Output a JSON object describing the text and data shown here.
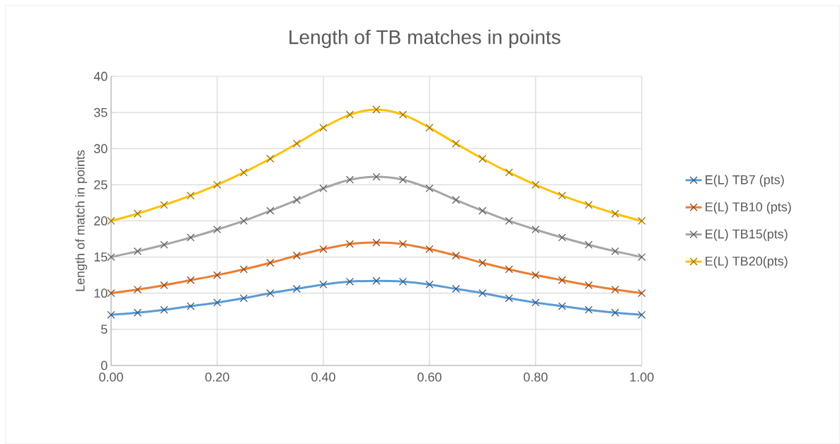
{
  "chart_data": {
    "type": "line",
    "title": "Length of TB matches in points",
    "ylabel": "Length of match in points",
    "x": [
      0,
      0.05,
      0.1,
      0.15,
      0.2,
      0.25,
      0.3,
      0.35,
      0.4,
      0.45,
      0.5,
      0.55,
      0.6,
      0.65,
      0.7,
      0.75,
      0.8,
      0.85,
      0.9,
      0.95,
      1
    ],
    "series": [
      {
        "name": "E(L) TB7 (pts)",
        "color": "#5b9bd5",
        "values": [
          7,
          7.3,
          7.7,
          8.2,
          8.7,
          9.3,
          10,
          10.6,
          11.2,
          11.6,
          11.7,
          11.6,
          11.2,
          10.6,
          10,
          9.3,
          8.7,
          8.2,
          7.7,
          7.3,
          7
        ]
      },
      {
        "name": "E(L) TB10 (pts)",
        "color": "#ed7d31",
        "values": [
          10,
          10.5,
          11.1,
          11.8,
          12.5,
          13.3,
          14.2,
          15.2,
          16.1,
          16.8,
          17,
          16.8,
          16.1,
          15.2,
          14.2,
          13.3,
          12.5,
          11.8,
          11.1,
          10.5,
          10
        ]
      },
      {
        "name": "E(L) TB15(pts)",
        "color": "#a5a5a5",
        "values": [
          15,
          15.8,
          16.7,
          17.7,
          18.8,
          20,
          21.4,
          22.9,
          24.5,
          25.7,
          26.1,
          25.7,
          24.5,
          22.9,
          21.4,
          20,
          18.8,
          17.7,
          16.7,
          15.8,
          15
        ]
      },
      {
        "name": "E(L) TB20(pts)",
        "color": "#ffc000",
        "values": [
          20,
          21,
          22.2,
          23.5,
          25,
          26.7,
          28.6,
          30.7,
          32.9,
          34.7,
          35.4,
          34.7,
          32.9,
          30.7,
          28.6,
          26.7,
          25,
          23.5,
          22.2,
          21,
          20
        ]
      }
    ],
    "xlim": [
      0,
      1
    ],
    "xticks": [
      {
        "value": 0,
        "label": "0.00"
      },
      {
        "value": 0.2,
        "label": "0.20"
      },
      {
        "value": 0.4,
        "label": "0.40"
      },
      {
        "value": 0.6,
        "label": "0.60"
      },
      {
        "value": 0.8,
        "label": "0.80"
      },
      {
        "value": 1,
        "label": "1.00"
      }
    ],
    "ylim": [
      0,
      40
    ],
    "yticks": [
      0,
      5,
      10,
      15,
      20,
      25,
      30,
      35,
      40
    ],
    "grid": true,
    "legend": "right",
    "marker": "cross",
    "line_style": "solid"
  }
}
